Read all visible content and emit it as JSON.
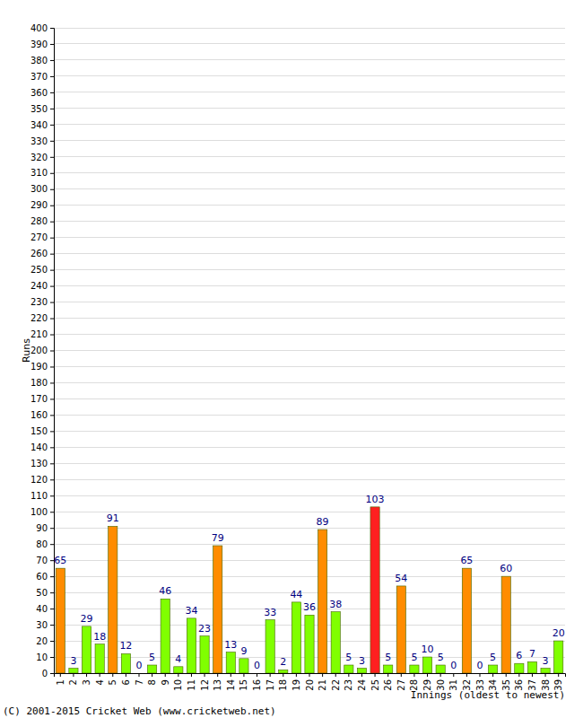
{
  "chart_data": {
    "type": "bar",
    "x_label": "Innings (oldest to newest)",
    "y_label": "Runs",
    "annotations": [
      "(C) 2001-2015 Cricket Web (www.cricketweb.net)"
    ],
    "categories": [
      "1",
      "2",
      "3",
      "4",
      "5",
      "6",
      "7",
      "8",
      "9",
      "10",
      "11",
      "12",
      "13",
      "14",
      "15",
      "16",
      "17",
      "18",
      "19",
      "20",
      "21",
      "22",
      "23",
      "24",
      "25",
      "26",
      "27",
      "28",
      "29",
      "30",
      "31",
      "32",
      "33",
      "34",
      "35",
      "36",
      "37",
      "38",
      "39"
    ],
    "values": [
      65,
      3,
      29,
      18,
      91,
      12,
      0,
      5,
      46,
      4,
      34,
      23,
      79,
      13,
      9,
      0,
      33,
      2,
      44,
      36,
      89,
      38,
      5,
      3,
      103,
      5,
      54,
      5,
      10,
      5,
      0,
      65,
      0,
      5,
      60,
      6,
      7,
      3,
      20
    ],
    "colors": [
      "#ff8c00",
      "#80ff00",
      "#80ff00",
      "#80ff00",
      "#ff8c00",
      "#80ff00",
      "#80ff00",
      "#80ff00",
      "#80ff00",
      "#80ff00",
      "#80ff00",
      "#80ff00",
      "#ff8c00",
      "#80ff00",
      "#80ff00",
      "#80ff00",
      "#80ff00",
      "#80ff00",
      "#80ff00",
      "#80ff00",
      "#ff8c00",
      "#80ff00",
      "#80ff00",
      "#80ff00",
      "#ff2020",
      "#80ff00",
      "#ff8c00",
      "#80ff00",
      "#80ff00",
      "#80ff00",
      "#80ff00",
      "#ff8c00",
      "#80ff00",
      "#80ff00",
      "#ff8c00",
      "#80ff00",
      "#80ff00",
      "#80ff00",
      "#80ff00"
    ],
    "ylim": [
      0,
      400
    ],
    "yticks": [
      0,
      10,
      20,
      30,
      40,
      50,
      60,
      70,
      80,
      90,
      100,
      110,
      120,
      130,
      140,
      150,
      160,
      170,
      180,
      190,
      200,
      210,
      220,
      230,
      240,
      250,
      260,
      270,
      280,
      290,
      300,
      310,
      320,
      330,
      340,
      350,
      360,
      370,
      380,
      390,
      400
    ],
    "grid": true,
    "data_labels": true,
    "tick_labels": true
  }
}
